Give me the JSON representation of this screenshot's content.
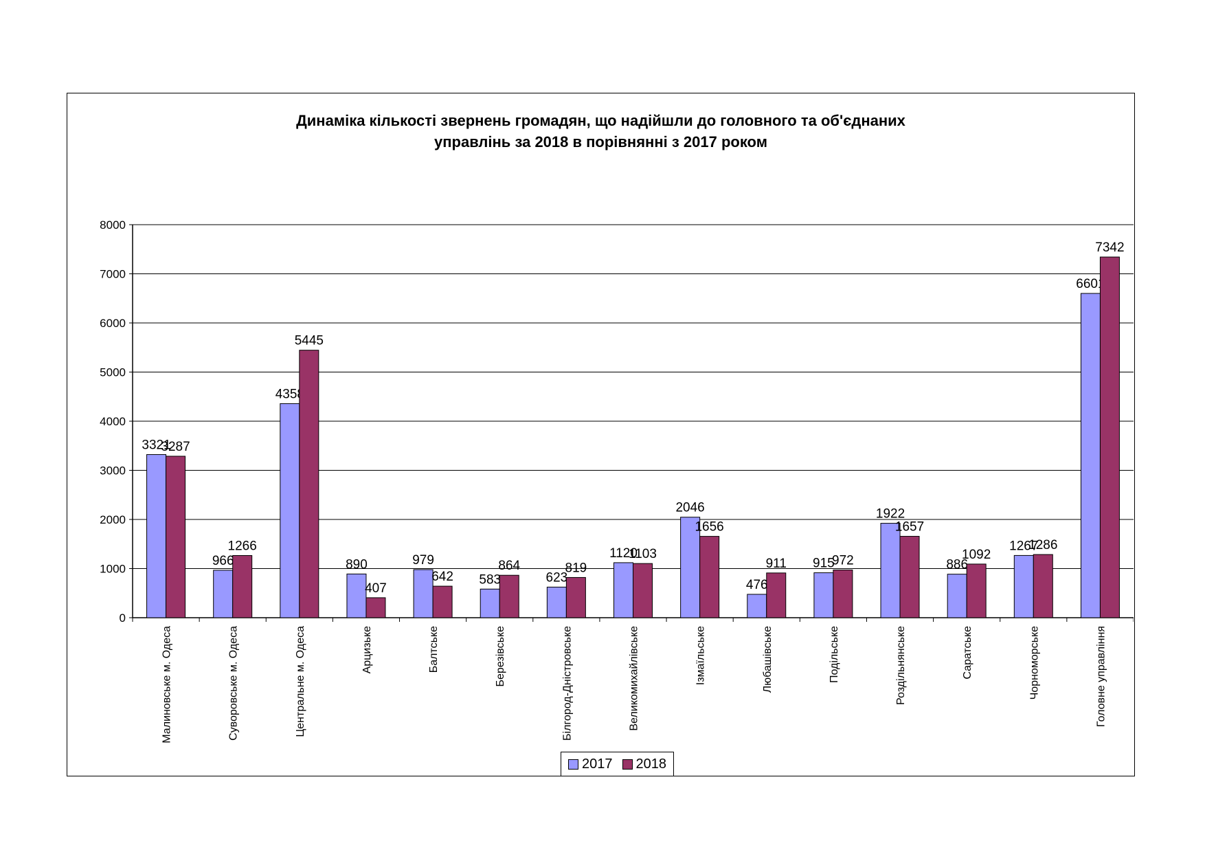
{
  "chart_data": {
    "type": "bar",
    "title_lines": [
      "Динаміка кількості звернень громадян, що надійшли до головного та об'єднаних",
      "управлінь за 2018 в порівнянні з 2017 роком"
    ],
    "categories": [
      "Малиновське м. Одеса",
      "Суворовське м. Одеса",
      "Центральне м. Одеса",
      "Арцизьке",
      "Балтське",
      "Березівське",
      "Білгород-Дністровське",
      "Великомихайлівське",
      "Ізмаїльське",
      "Любашівське",
      "Подільське",
      "Роздільнянське",
      "Саратське",
      "Чорноморське",
      "Головне управління"
    ],
    "series": [
      {
        "name": "2017",
        "color": "#9999ff",
        "values": [
          3321,
          966,
          4358,
          890,
          979,
          583,
          623,
          1120,
          2046,
          476,
          915,
          1922,
          886,
          1267,
          6601
        ],
        "labels": [
          "3321",
          "966",
          "4358",
          "890",
          "979",
          "583",
          "623",
          "1120",
          "2046",
          "476",
          "915",
          "1922",
          "886",
          "1267",
          "6601"
        ]
      },
      {
        "name": "2018",
        "color": "#993366",
        "values": [
          3287,
          1266,
          5445,
          407,
          642,
          864,
          819,
          1103,
          1656,
          911,
          972,
          1657,
          1092,
          1286,
          7342
        ],
        "labels": [
          "3287",
          "1266",
          "5445",
          "407",
          "642",
          "864",
          "819",
          "1103",
          "1656",
          "911",
          "972",
          "1657",
          "1092",
          "1286",
          "7342"
        ]
      }
    ],
    "ylim": [
      0,
      8000
    ],
    "yticks": [
      "0",
      "1000",
      "2000",
      "3000",
      "4000",
      "5000",
      "6000",
      "7000",
      "8000"
    ],
    "grid": true,
    "legend_position": "bottom"
  }
}
